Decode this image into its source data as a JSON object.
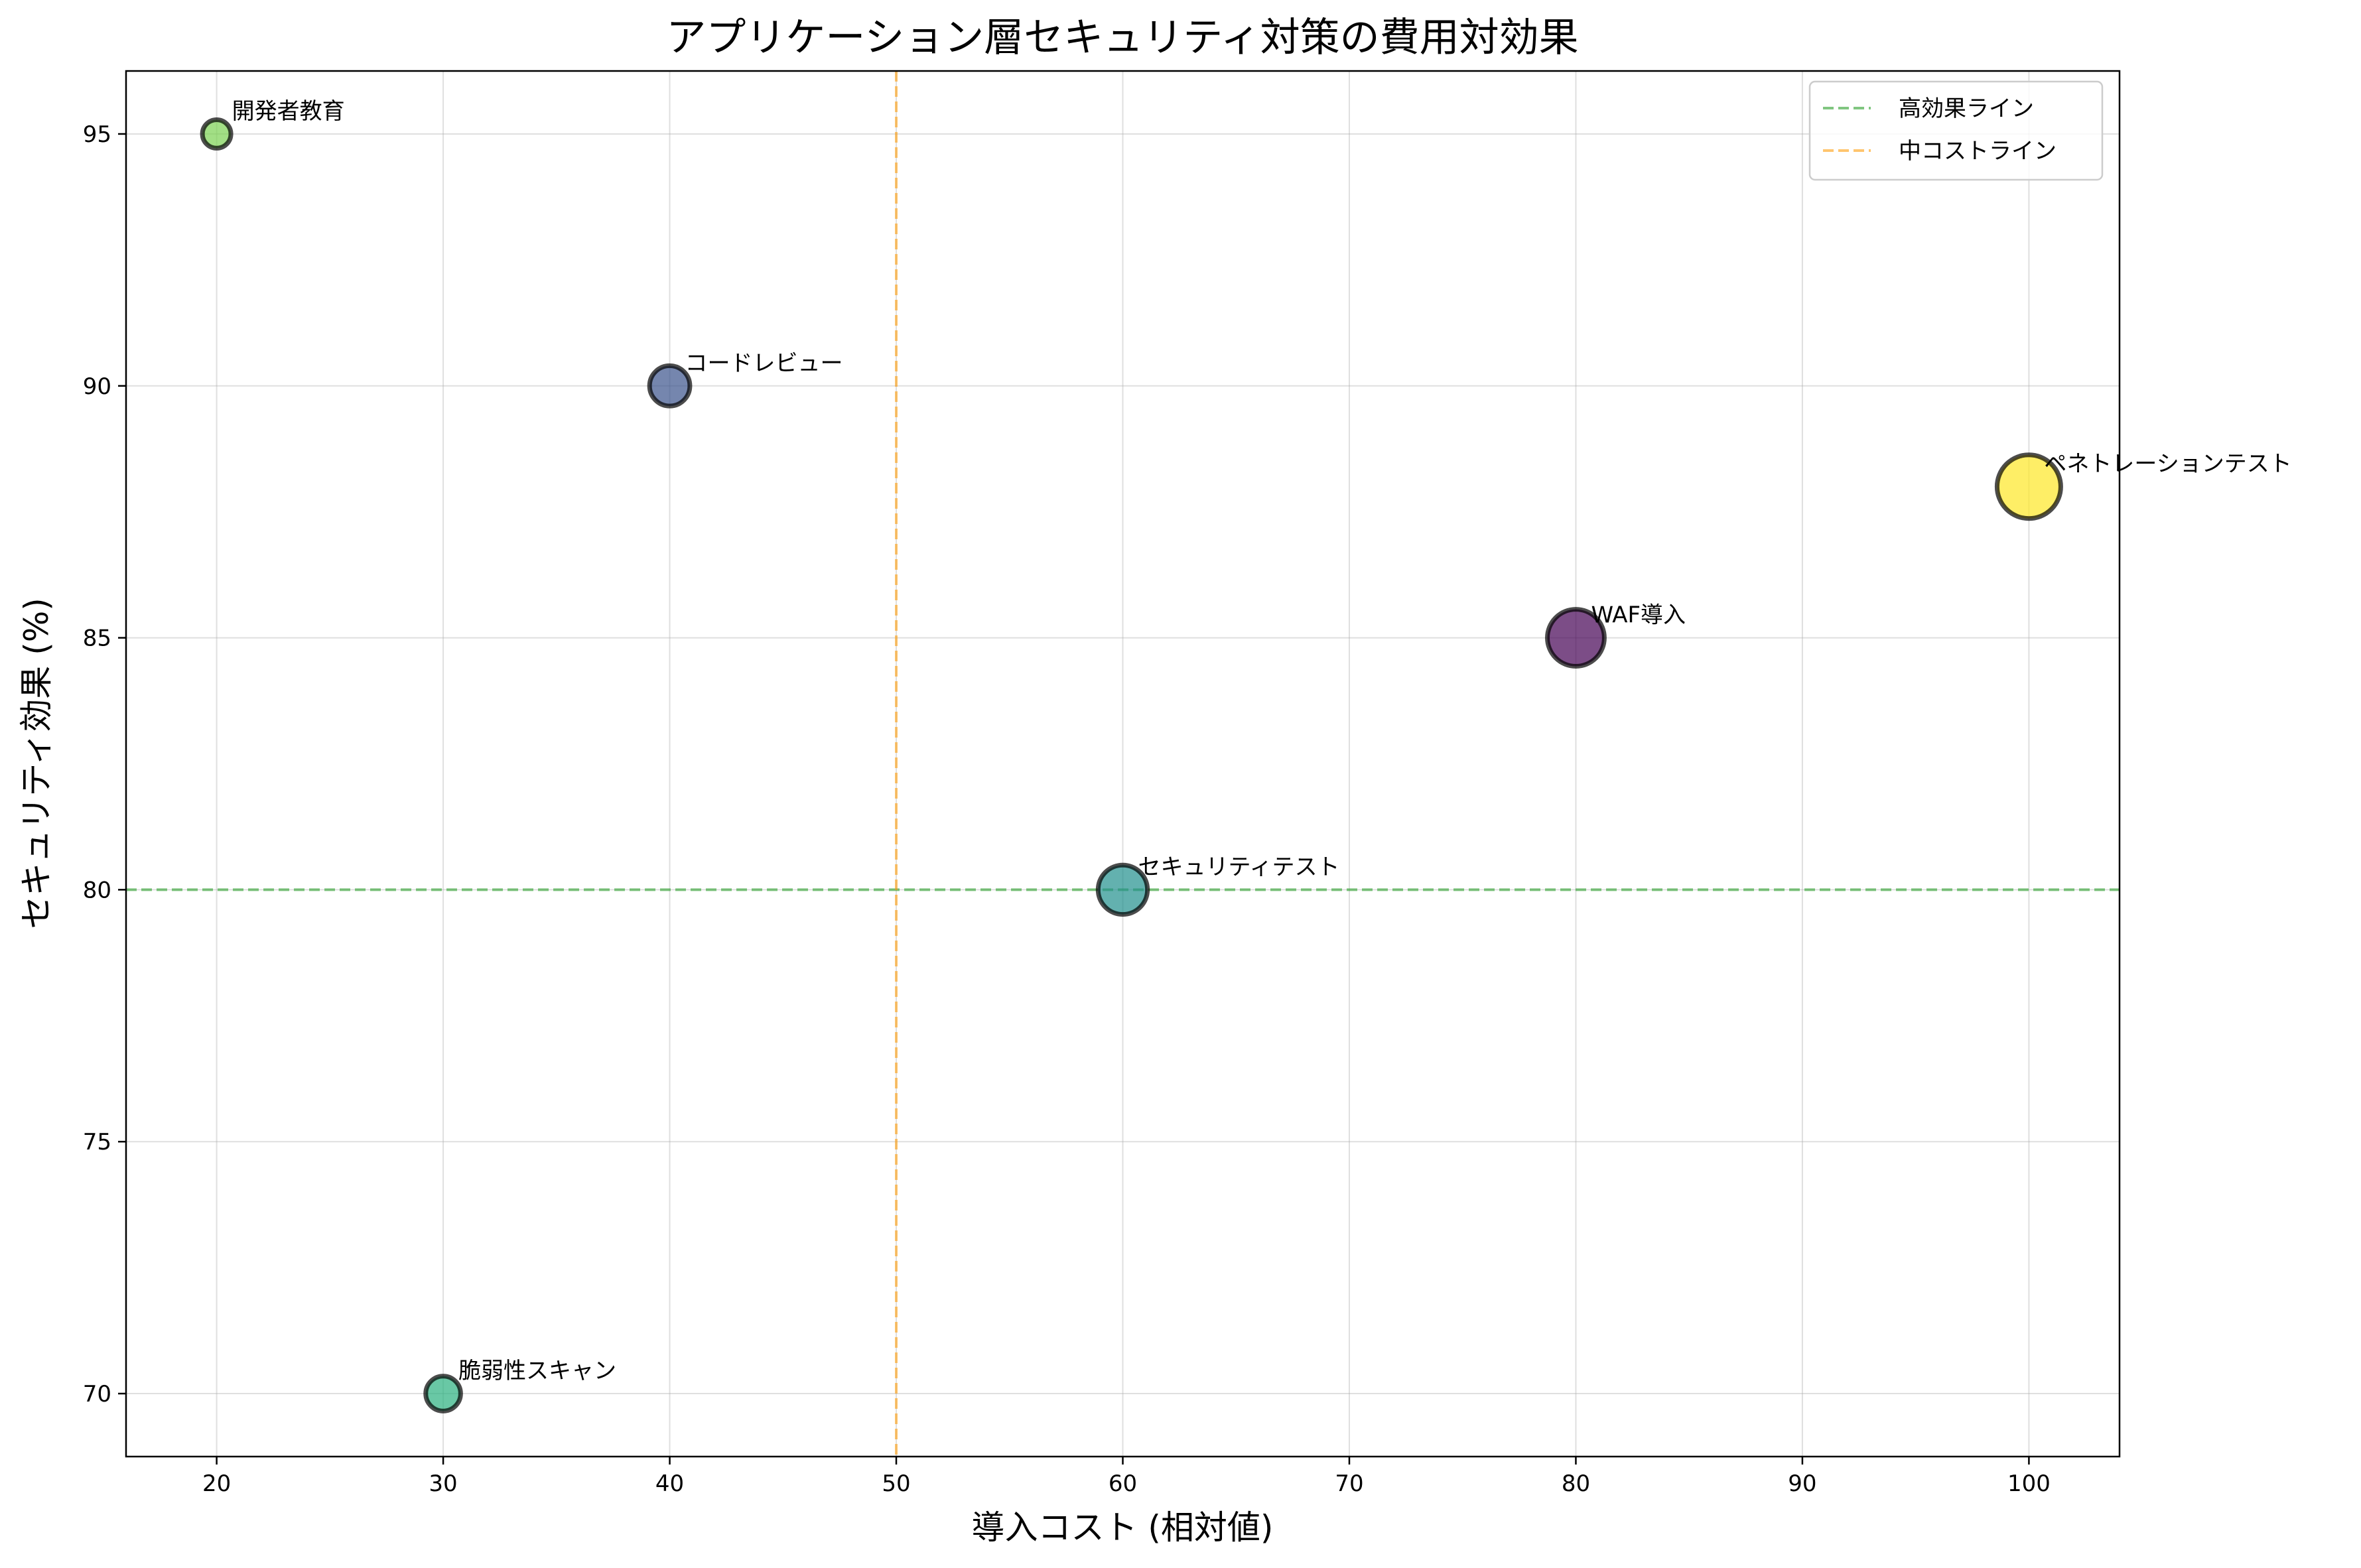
{
  "chart_data": {
    "type": "scatter",
    "title": "アプリケーション層セキュリティ対策の費用対効果",
    "xlabel": "導入コスト (相対値)",
    "ylabel": "セキュリティ効果 (%)",
    "xlim": [
      16,
      104
    ],
    "ylim": [
      68.75,
      96.25
    ],
    "xticks": [
      20,
      30,
      40,
      50,
      60,
      70,
      80,
      90,
      100
    ],
    "yticks": [
      70,
      75,
      80,
      85,
      90,
      95
    ],
    "grid": true,
    "points": [
      {
        "name": "WAF導入",
        "x": 80,
        "y": 85,
        "size": 80,
        "color": "#440154"
      },
      {
        "name": "コードレビュー",
        "x": 40,
        "y": 90,
        "size": 40,
        "color": "#3b528b"
      },
      {
        "name": "セキュリティテスト",
        "x": 60,
        "y": 80,
        "size": 60,
        "color": "#21908d"
      },
      {
        "name": "脆弱性スキャン",
        "x": 30,
        "y": 70,
        "size": 30,
        "color": "#2ab07f"
      },
      {
        "name": "開発者教育",
        "x": 20,
        "y": 95,
        "size": 20,
        "color": "#7ad151"
      },
      {
        "name": "ペネトレーションテスト",
        "x": 100,
        "y": 88,
        "size": 100,
        "color": "#fde725"
      }
    ],
    "reference_lines": [
      {
        "orientation": "horizontal",
        "value": 80,
        "color": "#2ca02c",
        "label": "高効果ライン"
      },
      {
        "orientation": "vertical",
        "value": 50,
        "color": "#ff9f0e",
        "label": "中コストライン"
      }
    ],
    "legend": {
      "position": "top-right",
      "entries": [
        {
          "label": "高効果ライン",
          "color": "#2ca02c"
        },
        {
          "label": "中コストライン",
          "color": "#ff9f0e"
        }
      ]
    }
  }
}
